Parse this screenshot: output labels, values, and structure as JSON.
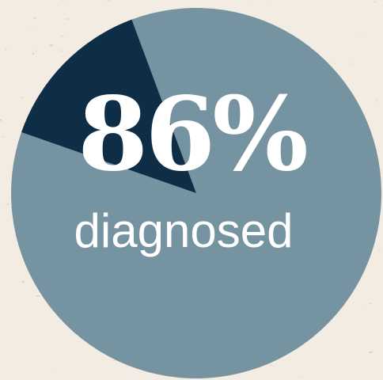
{
  "chart_data": {
    "type": "pie",
    "slices": [
      {
        "value": 86,
        "color": "#7593a1"
      },
      {
        "value": 14,
        "color": "#0e2d47"
      }
    ],
    "center_value": "86%",
    "center_caption": "diagnosed"
  },
  "colors": {
    "background": "#f3ece2",
    "texture": "#d9c2a2"
  }
}
